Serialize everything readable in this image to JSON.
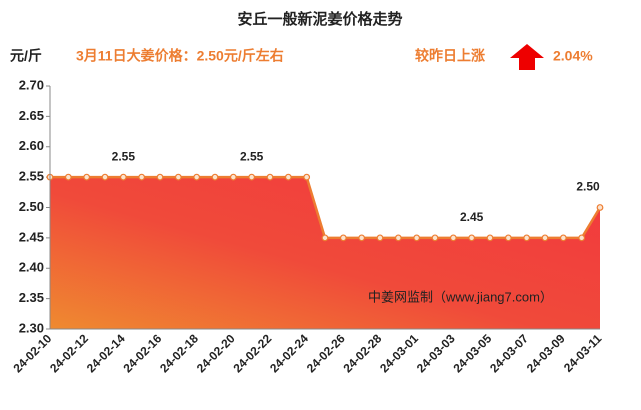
{
  "chart_data": {
    "type": "area",
    "title": "安丘一般新泥姜价格走势",
    "unit": "元/斤",
    "subtitle": "3月11日大姜价格：2.50元/斤左右",
    "change_label": "较昨日上涨",
    "change_value": "2.04%",
    "annotation": "中姜网监制（www.jiang7.com）",
    "categories": [
      "24-02-10",
      null,
      "24-02-12",
      null,
      "24-02-14",
      null,
      "24-02-16",
      null,
      "24-02-18",
      null,
      "24-02-20",
      null,
      "24-02-22",
      null,
      "24-02-24",
      null,
      "24-02-26",
      null,
      "24-02-28",
      null,
      "24-03-01",
      null,
      "24-03-03",
      null,
      "24-03-05",
      null,
      "24-03-07",
      null,
      "24-03-09",
      null,
      "24-03-11"
    ],
    "values": [
      2.55,
      2.55,
      2.55,
      2.55,
      2.55,
      2.55,
      2.55,
      2.55,
      2.55,
      2.55,
      2.55,
      2.55,
      2.55,
      2.55,
      2.55,
      2.45,
      2.45,
      2.45,
      2.45,
      2.45,
      2.45,
      2.45,
      2.45,
      2.45,
      2.45,
      2.45,
      2.45,
      2.45,
      2.45,
      2.45,
      2.5
    ],
    "value_labels": [
      null,
      null,
      null,
      null,
      "2.55",
      null,
      null,
      null,
      null,
      null,
      null,
      "2.55",
      null,
      null,
      null,
      null,
      null,
      null,
      null,
      null,
      null,
      null,
      null,
      "2.45",
      null,
      null,
      null,
      null,
      null,
      null,
      "2.50"
    ],
    "color": "#ed7d31",
    "ylim": [
      2.3,
      2.7
    ],
    "yticks": [
      {
        "value": 2.3,
        "label": "2.30"
      },
      2.35,
      {
        "value": 2.4,
        "label": "2.40"
      },
      2.45,
      {
        "value": 2.5,
        "label": "2.50"
      },
      2.55,
      {
        "value": 2.6,
        "label": "2.60"
      },
      2.65,
      {
        "value": 2.7,
        "label": "2.70"
      }
    ],
    "grid": false
  }
}
